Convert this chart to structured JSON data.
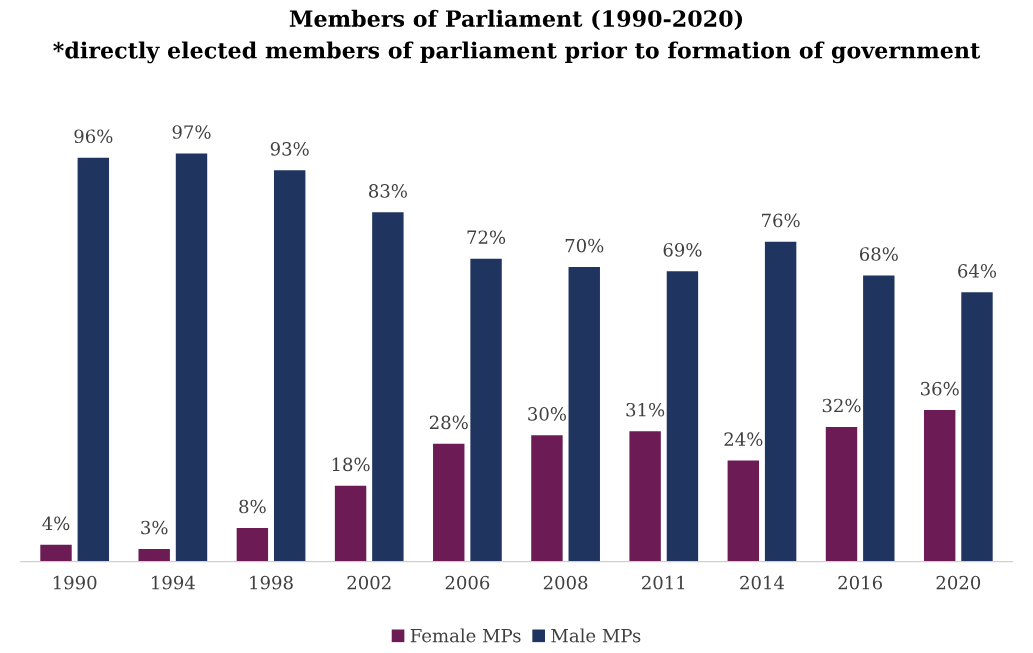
{
  "chart_data": {
    "type": "bar",
    "title": "Members of Parliament (1990-2020)\n*directly elected members of parliament prior to formation of government",
    "categories": [
      "1990",
      "1994",
      "1998",
      "2002",
      "2006",
      "2008",
      "2011",
      "2014",
      "2016",
      "2020"
    ],
    "series": [
      {
        "name": "Female MPs",
        "color": "#6d1b54",
        "values": [
          4,
          3,
          8,
          18,
          28,
          30,
          31,
          24,
          32,
          36
        ],
        "value_labels": [
          "4%",
          "3%",
          "8%",
          "18%",
          "28%",
          "30%",
          "31%",
          "24%",
          "32%",
          "36%"
        ]
      },
      {
        "name": "Male MPs",
        "color": "#1f3560",
        "values": [
          96,
          97,
          93,
          83,
          72,
          70,
          69,
          76,
          68,
          64
        ],
        "value_labels": [
          "96%",
          "97%",
          "93%",
          "83%",
          "72%",
          "70%",
          "69%",
          "76%",
          "68%",
          "64%"
        ]
      }
    ],
    "legend": "bottom",
    "grid": false
  }
}
